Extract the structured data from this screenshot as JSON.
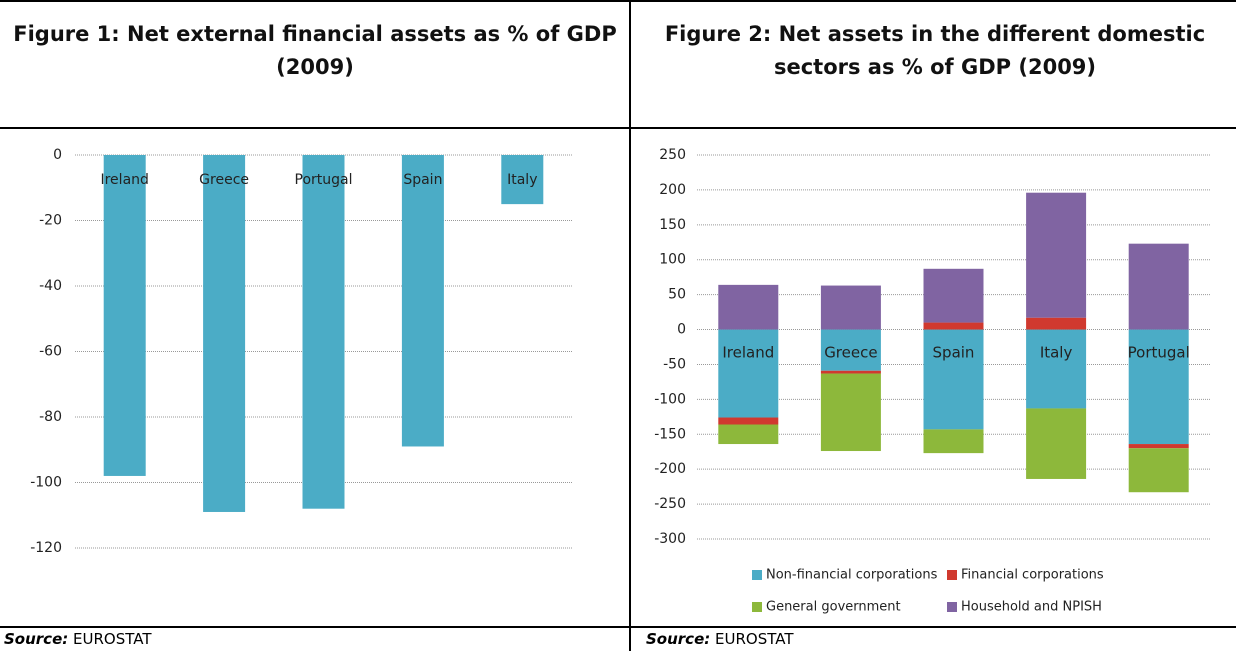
{
  "chart_data": [
    {
      "type": "bar",
      "title": "Figure 1: Net external financial assets as % of GDP (2009)",
      "categories": [
        "Ireland",
        "Greece",
        "Portugal",
        "Spain",
        "Italy"
      ],
      "values": [
        -98,
        -109,
        -108,
        -89,
        -15
      ],
      "color": "#4bacc6",
      "ylim": [
        -120,
        0
      ],
      "yticks": [
        0,
        -20,
        -40,
        -60,
        -80,
        -100,
        -120
      ],
      "grid": true,
      "source_label": "Source:",
      "source": "EUROSTAT"
    },
    {
      "type": "stacked_bar",
      "title": "Figure 2: Net assets in the different domestic sectors as % of GDP (2009)",
      "categories": [
        "Ireland",
        "Greece",
        "Spain",
        "Italy",
        "Portugal"
      ],
      "series": [
        {
          "name": "Non-financial corporations",
          "color": "#4bacc6",
          "values": [
            -126,
            -59,
            -143,
            -113,
            -164
          ]
        },
        {
          "name": "Financial corporations",
          "color": "#d0392f",
          "values": [
            -10,
            -4,
            10,
            17,
            -6
          ]
        },
        {
          "name": "General government",
          "color": "#8db83b",
          "values": [
            -28,
            -111,
            -34,
            -101,
            -63
          ]
        },
        {
          "name": "Household and NPISH",
          "color": "#8064a2",
          "values": [
            64,
            63,
            77,
            179,
            123
          ]
        }
      ],
      "ylim": [
        -300,
        250
      ],
      "yticks": [
        250,
        200,
        150,
        100,
        50,
        0,
        -50,
        -100,
        -150,
        -200,
        -250,
        -300
      ],
      "grid": true,
      "legend": "bottom",
      "source_label": "Source:",
      "source": "EUROSTAT"
    }
  ]
}
